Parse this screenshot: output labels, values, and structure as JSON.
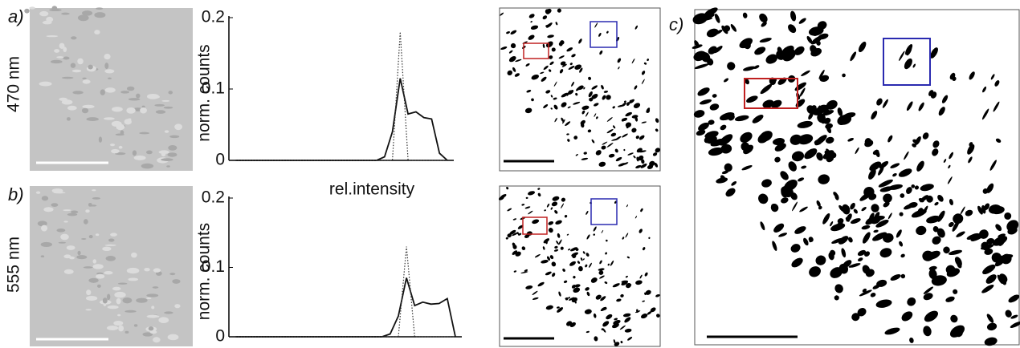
{
  "panel_labels": [
    "a)",
    "b)",
    "c)"
  ],
  "row_labels": [
    "470 nm",
    "555 nm"
  ],
  "chart_data": [
    {
      "type": "line",
      "y_label": "norm. counts",
      "x_label": "rel.intensity",
      "categories": [
        null,
        null,
        null,
        null,
        null,
        null,
        null,
        null,
        null,
        null,
        null,
        null,
        null,
        null,
        null,
        null,
        null,
        null,
        null,
        null,
        null,
        null,
        null,
        null,
        null,
        null,
        null,
        null
      ],
      "series": [
        {
          "color": "#111111",
          "linestyle": "solid",
          "values": [
            0,
            0,
            0,
            0,
            0,
            0,
            0,
            0,
            0,
            0,
            0,
            0,
            0,
            0,
            0,
            0,
            0,
            0,
            0,
            0.005,
            0.04,
            0.115,
            0.065,
            0.068,
            0.06,
            0.058,
            0.01,
            0
          ]
        },
        {
          "color": "#333333",
          "linestyle": "dotted",
          "values": [
            0,
            0,
            0,
            0,
            0,
            0,
            0,
            0,
            0,
            0,
            0,
            0,
            0,
            0,
            0,
            0,
            0,
            0,
            0,
            0,
            0,
            0.18,
            0,
            0,
            0,
            0,
            0,
            0
          ]
        }
      ],
      "ylim": [
        0,
        0.2
      ],
      "yticks": [
        0,
        0.1,
        0.2
      ]
    },
    {
      "type": "line",
      "y_label": "norm. counts",
      "categories": [
        null,
        null,
        null,
        null,
        null,
        null,
        null,
        null,
        null,
        null,
        null,
        null,
        null,
        null,
        null,
        null,
        null,
        null,
        null,
        null,
        null,
        null,
        null,
        null,
        null,
        null,
        null,
        null
      ],
      "series": [
        {
          "color": "#111111",
          "linestyle": "solid",
          "values": [
            0,
            0,
            0,
            0,
            0,
            0,
            0,
            0,
            0,
            0,
            0,
            0,
            0,
            0,
            0,
            0,
            0,
            0,
            0,
            0.004,
            0.03,
            0.085,
            0.045,
            0.05,
            0.047,
            0.048,
            0.055,
            0
          ]
        },
        {
          "color": "#333333",
          "linestyle": "dotted",
          "values": [
            0,
            0,
            0,
            0,
            0,
            0,
            0,
            0,
            0,
            0,
            0,
            0,
            0,
            0,
            0,
            0,
            0,
            0,
            0,
            0,
            0,
            0.13,
            0,
            0,
            0,
            0,
            0,
            0
          ]
        }
      ],
      "ylim": [
        0,
        0.2
      ],
      "yticks": [
        0,
        0.1,
        0.2
      ]
    }
  ]
}
